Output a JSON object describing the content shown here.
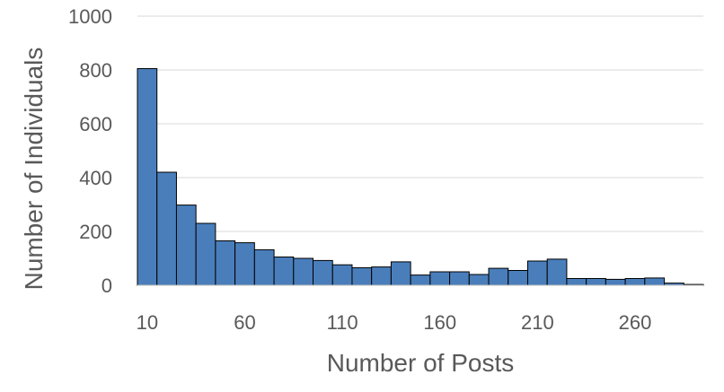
{
  "chart_data": {
    "type": "bar",
    "xlabel": "Number of Posts",
    "ylabel": "Number of Individuals",
    "ylim": [
      0,
      1000
    ],
    "yticks": [
      "0",
      "200",
      "400",
      "600",
      "800",
      "1000"
    ],
    "xticks": [
      "10",
      "60",
      "110",
      "160",
      "210",
      "260"
    ],
    "grid": true,
    "bar_color": "#4a7ebb",
    "bins": [
      10,
      20,
      30,
      40,
      50,
      60,
      70,
      80,
      90,
      100,
      110,
      120,
      130,
      140,
      150,
      160,
      170,
      180,
      190,
      200,
      210,
      220,
      230,
      240,
      250,
      260,
      270,
      280,
      290
    ],
    "values": [
      805,
      420,
      298,
      230,
      165,
      158,
      132,
      105,
      100,
      92,
      76,
      65,
      68,
      87,
      38,
      50,
      50,
      40,
      63,
      55,
      90,
      97,
      25,
      25,
      22,
      25,
      27,
      8,
      3
    ]
  }
}
